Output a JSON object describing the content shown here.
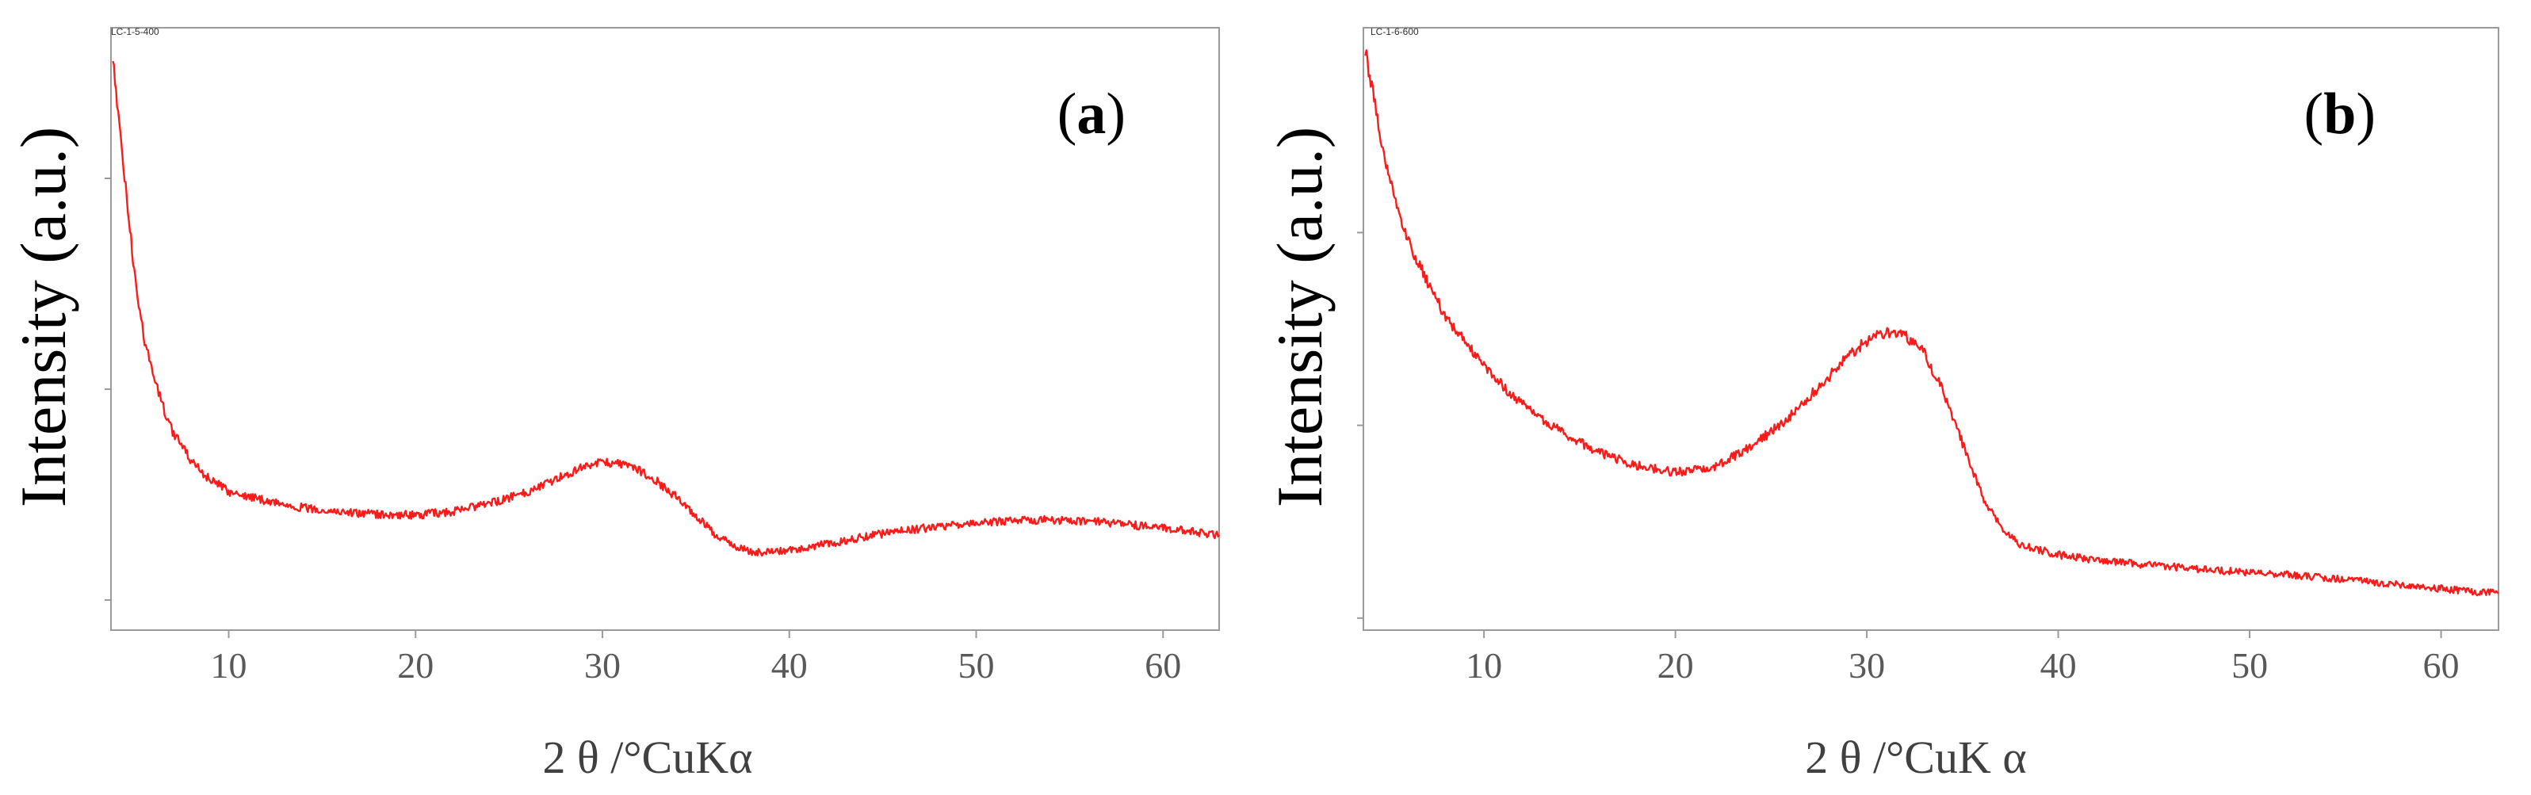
{
  "chart_data": [
    {
      "type": "line",
      "panel_label": "a",
      "sample_id": "LC-1-5-400",
      "xlabel": "2 θ /°CuKα",
      "ylabel": "Intensity (a.u.)",
      "xlim": [
        3.7,
        63
      ],
      "ylim": [
        0,
        100
      ],
      "x_ticks": [
        10,
        20,
        30,
        40,
        50,
        60
      ],
      "y_ticks": [
        5,
        40,
        75
      ],
      "grid": false,
      "series": [
        {
          "name": "LC-1-5-400",
          "color": "#ff1a1a",
          "x": [
            3.8,
            4.2,
            4.6,
            5.0,
            5.5,
            6.0,
            6.5,
            7.0,
            8.0,
            9.0,
            10.0,
            12.0,
            14.0,
            16.0,
            18.0,
            20.0,
            22.0,
            24.0,
            26.0,
            28.0,
            29.0,
            30.0,
            31.0,
            32.0,
            33.0,
            34.0,
            35.0,
            36.0,
            37.0,
            38.0,
            39.0,
            40.0,
            42.0,
            44.0,
            46.0,
            48.0,
            50.0,
            52.0,
            54.0,
            56.0,
            58.0,
            60.0,
            62.0,
            63.0
          ],
          "values": [
            95,
            82,
            70,
            58,
            48,
            42,
            37,
            33,
            28,
            25,
            23,
            21.5,
            20.3,
            19.6,
            19.2,
            19.1,
            19.7,
            21.0,
            23.0,
            25.8,
            27.2,
            27.8,
            27.6,
            26.5,
            24.5,
            22.0,
            19.0,
            16.0,
            14.0,
            13.0,
            12.9,
            13.2,
            14.3,
            15.5,
            16.5,
            17.2,
            17.8,
            18.2,
            18.3,
            18.1,
            17.6,
            16.9,
            16.2,
            15.8
          ]
        }
      ]
    },
    {
      "type": "line",
      "panel_label": "b",
      "sample_id": "LC-1-6-600",
      "xlabel": "2 θ /°CuK α",
      "ylabel": "Intensity (a.u.)",
      "xlim": [
        3.7,
        63
      ],
      "ylim": [
        0,
        100
      ],
      "x_ticks": [
        10,
        20,
        30,
        40,
        50,
        60
      ],
      "y_ticks": [
        2,
        34,
        66
      ],
      "grid": false,
      "series": [
        {
          "name": "LC-1-6-600",
          "color": "#ff1a1a",
          "x": [
            3.8,
            4.2,
            4.6,
            5.0,
            5.5,
            6.0,
            7.0,
            8.0,
            9.0,
            10.0,
            11.0,
            12.0,
            14.0,
            16.0,
            18.0,
            20.0,
            22.0,
            24.0,
            26.0,
            28.0,
            29.0,
            30.0,
            31.0,
            32.0,
            33.0,
            34.0,
            35.0,
            36.0,
            37.0,
            38.0,
            40.0,
            42.0,
            44.0,
            46.0,
            48.0,
            50.0,
            52.0,
            54.0,
            56.0,
            58.0,
            60.0,
            62.0,
            63.0
          ],
          "values": [
            96,
            89,
            82,
            76,
            70,
            65,
            58,
            52,
            48,
            44,
            40.5,
            37.5,
            33,
            29.5,
            27.3,
            26.2,
            27.0,
            30.5,
            35.5,
            42.0,
            45.5,
            48.0,
            49.5,
            49.0,
            46.0,
            39.5,
            31.0,
            22.5,
            17.0,
            14.2,
            12.5,
            11.6,
            11.0,
            10.5,
            10.0,
            9.6,
            9.2,
            8.7,
            8.1,
            7.5,
            6.9,
            6.3,
            6.1
          ]
        }
      ]
    }
  ]
}
